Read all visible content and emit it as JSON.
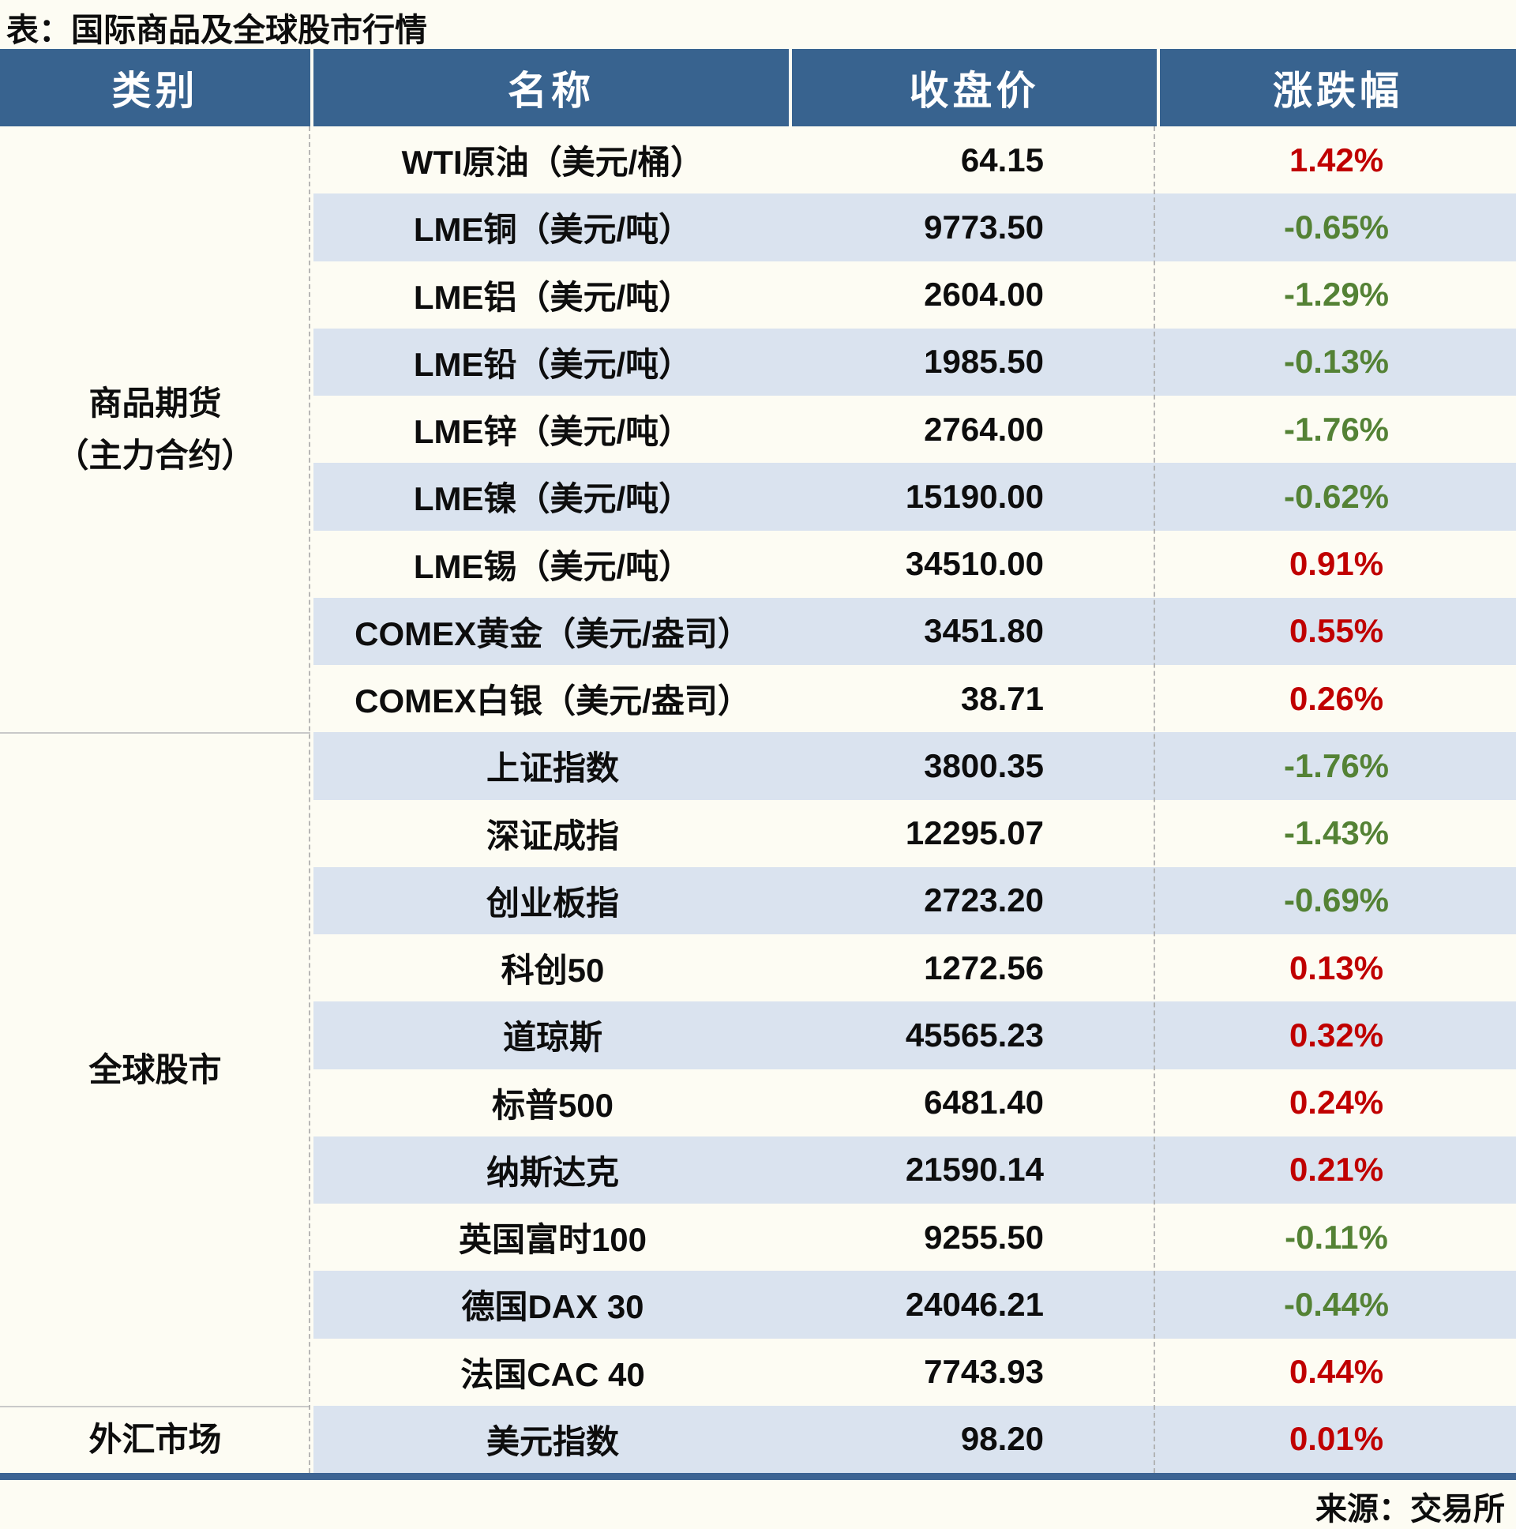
{
  "title": "表：国际商品及全球股市行情",
  "source_note": "来源：交易所",
  "table": {
    "columns": [
      "类别",
      "名称",
      "收盘价",
      "涨跌幅"
    ],
    "sections": [
      {
        "category_lines": [
          "商品期货",
          "（主力合约）"
        ],
        "rows": [
          {
            "name": "WTI原油（美元/桶）",
            "close": "64.15",
            "change": "1.42%",
            "trend": "up"
          },
          {
            "name": "LME铜（美元/吨）",
            "close": "9773.50",
            "change": "-0.65%",
            "trend": "down"
          },
          {
            "name": "LME铝（美元/吨）",
            "close": "2604.00",
            "change": "-1.29%",
            "trend": "down"
          },
          {
            "name": "LME铅（美元/吨）",
            "close": "1985.50",
            "change": "-0.13%",
            "trend": "down"
          },
          {
            "name": "LME锌（美元/吨）",
            "close": "2764.00",
            "change": "-1.76%",
            "trend": "down"
          },
          {
            "name": "LME镍（美元/吨）",
            "close": "15190.00",
            "change": "-0.62%",
            "trend": "down"
          },
          {
            "name": "LME锡（美元/吨）",
            "close": "34510.00",
            "change": "0.91%",
            "trend": "up"
          },
          {
            "name": "COMEX黄金（美元/盎司）",
            "close": "3451.80",
            "change": "0.55%",
            "trend": "up"
          },
          {
            "name": "COMEX白银（美元/盎司）",
            "close": "38.71",
            "change": "0.26%",
            "trend": "up"
          }
        ]
      },
      {
        "category_lines": [
          "全球股市"
        ],
        "rows": [
          {
            "name": "上证指数",
            "close": "3800.35",
            "change": "-1.76%",
            "trend": "down"
          },
          {
            "name": "深证成指",
            "close": "12295.07",
            "change": "-1.43%",
            "trend": "down"
          },
          {
            "name": "创业板指",
            "close": "2723.20",
            "change": "-0.69%",
            "trend": "down"
          },
          {
            "name": "科创50",
            "close": "1272.56",
            "change": "0.13%",
            "trend": "up"
          },
          {
            "name": "道琼斯",
            "close": "45565.23",
            "change": "0.32%",
            "trend": "up"
          },
          {
            "name": "标普500",
            "close": "6481.40",
            "change": "0.24%",
            "trend": "up"
          },
          {
            "name": "纳斯达克",
            "close": "21590.14",
            "change": "0.21%",
            "trend": "up"
          },
          {
            "name": "英国富时100",
            "close": "9255.50",
            "change": "-0.11%",
            "trend": "down"
          },
          {
            "name": "德国DAX 30",
            "close": "24046.21",
            "change": "-0.44%",
            "trend": "down"
          },
          {
            "name": "法国CAC 40",
            "close": "7743.93",
            "change": "0.44%",
            "trend": "up"
          }
        ]
      },
      {
        "category_lines": [
          "外汇市场"
        ],
        "rows": [
          {
            "name": "美元指数",
            "close": "98.20",
            "change": "0.01%",
            "trend": "up"
          }
        ]
      }
    ]
  },
  "chart_data": {
    "type": "table",
    "title": "表：国际商品及全球股市行情",
    "columns": [
      "类别",
      "名称",
      "收盘价",
      "涨跌幅"
    ],
    "rows": [
      {
        "category": "商品期货（主力合约）",
        "name": "WTI原油（美元/桶）",
        "close": "64.15",
        "change_pct": 1.42
      },
      {
        "category": "商品期货（主力合约）",
        "name": "LME铜（美元/吨）",
        "close": "9773.50",
        "change_pct": -0.65
      },
      {
        "category": "商品期货（主力合约）",
        "name": "LME铝（美元/吨）",
        "close": "2604.00",
        "change_pct": -1.29
      },
      {
        "category": "商品期货（主力合约）",
        "name": "LME铅（美元/吨）",
        "close": "1985.50",
        "change_pct": -0.13
      },
      {
        "category": "商品期货（主力合约）",
        "name": "LME锌（美元/吨）",
        "close": "2764.00",
        "change_pct": -1.76
      },
      {
        "category": "商品期货（主力合约）",
        "name": "LME镍（美元/吨）",
        "close": "15190.00",
        "change_pct": -0.62
      },
      {
        "category": "商品期货（主力合约）",
        "name": "LME锡（美元/吨）",
        "close": "34510.00",
        "change_pct": 0.91
      },
      {
        "category": "商品期货（主力合约）",
        "name": "COMEX黄金（美元/盎司）",
        "close": "3451.80",
        "change_pct": 0.55
      },
      {
        "category": "商品期货（主力合约）",
        "name": "COMEX白银（美元/盎司）",
        "close": "38.71",
        "change_pct": 0.26
      },
      {
        "category": "全球股市",
        "name": "上证指数",
        "close": "3800.35",
        "change_pct": -1.76
      },
      {
        "category": "全球股市",
        "name": "深证成指",
        "close": "12295.07",
        "change_pct": -1.43
      },
      {
        "category": "全球股市",
        "name": "创业板指",
        "close": "2723.20",
        "change_pct": -0.69
      },
      {
        "category": "全球股市",
        "name": "科创50",
        "close": "1272.56",
        "change_pct": 0.13
      },
      {
        "category": "全球股市",
        "name": "道琼斯",
        "close": "45565.23",
        "change_pct": 0.32
      },
      {
        "category": "全球股市",
        "name": "标普500",
        "close": "6481.40",
        "change_pct": 0.24
      },
      {
        "category": "全球股市",
        "name": "纳斯达克",
        "close": "21590.14",
        "change_pct": 0.21
      },
      {
        "category": "全球股市",
        "name": "英国富时100",
        "close": "9255.50",
        "change_pct": -0.11
      },
      {
        "category": "全球股市",
        "name": "德国DAX 30",
        "close": "24046.21",
        "change_pct": -0.44
      },
      {
        "category": "全球股市",
        "name": "法国CAC 40",
        "close": "7743.93",
        "change_pct": 0.44
      },
      {
        "category": "外汇市场",
        "name": "美元指数",
        "close": "98.20",
        "change_pct": 0.01
      }
    ],
    "source": "来源：交易所",
    "legend_note": "red = up, olive-green = down"
  },
  "colors": {
    "page_bg": "#FDFCF3",
    "header_bg": "#38638F",
    "header_text": "#FFFFFF",
    "row_stripe": "#DAE3EF",
    "up_red": "#C00000",
    "down_green": "#548235",
    "bottom_rule": "#3D6493",
    "text": "#0D0D0D"
  }
}
